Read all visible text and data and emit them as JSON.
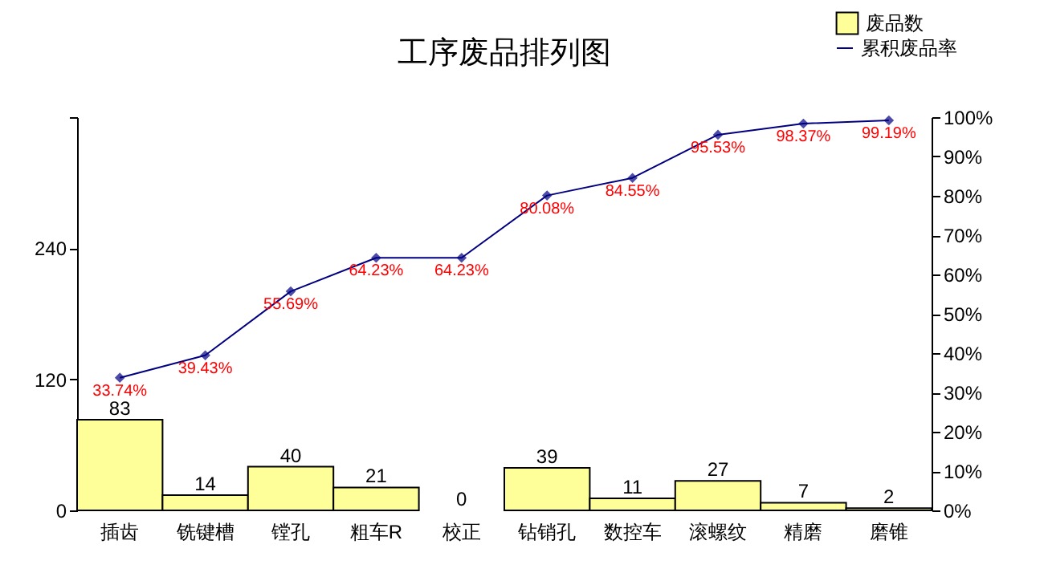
{
  "chart_data": {
    "type": "bar",
    "title": "工序废品排列图",
    "categories": [
      "插齿",
      "铣键槽",
      "镗孔",
      "粗车R",
      "校正",
      "钻销孔",
      "数控车",
      "滚螺纹",
      "精磨",
      "磨锥"
    ],
    "series": [
      {
        "name": "废品数",
        "color": "#ffff99",
        "values": [
          83,
          14,
          40,
          21,
          0,
          39,
          11,
          27,
          7,
          2
        ],
        "value_labels": [
          "83",
          "14",
          "40",
          "21",
          "0",
          "39",
          "11",
          "27",
          "7",
          "2"
        ]
      },
      {
        "name": "累积废品率",
        "type": "line",
        "axis": "y2",
        "color": "#000080",
        "values": [
          33.74,
          39.43,
          55.69,
          64.23,
          64.23,
          80.08,
          84.55,
          95.53,
          98.37,
          99.19
        ],
        "value_labels": [
          "33.74%",
          "39.43%",
          "55.69%",
          "64.23%",
          "64.23%",
          "80.08%",
          "84.55%",
          "95.53%",
          "98.37%",
          "99.19%"
        ]
      }
    ],
    "ylim": [
      0,
      360
    ],
    "yticks": [
      0,
      120,
      240,
      {
        "value": 360,
        "label": null
      }
    ],
    "y2lim": [
      0,
      100
    ],
    "y2ticks": [
      {
        "value": 0,
        "label": "0%"
      },
      {
        "value": 10,
        "label": "10%"
      },
      {
        "value": 20,
        "label": "20%"
      },
      {
        "value": 30,
        "label": "30%"
      },
      {
        "value": 40,
        "label": "40%"
      },
      {
        "value": 50,
        "label": "50%"
      },
      {
        "value": 60,
        "label": "60%"
      },
      {
        "value": 70,
        "label": "70%"
      },
      {
        "value": 80,
        "label": "80%"
      },
      {
        "value": 90,
        "label": "90%"
      },
      {
        "value": 100,
        "label": "100%"
      }
    ],
    "legend": "top right",
    "marker": "diamond",
    "grid": false
  }
}
